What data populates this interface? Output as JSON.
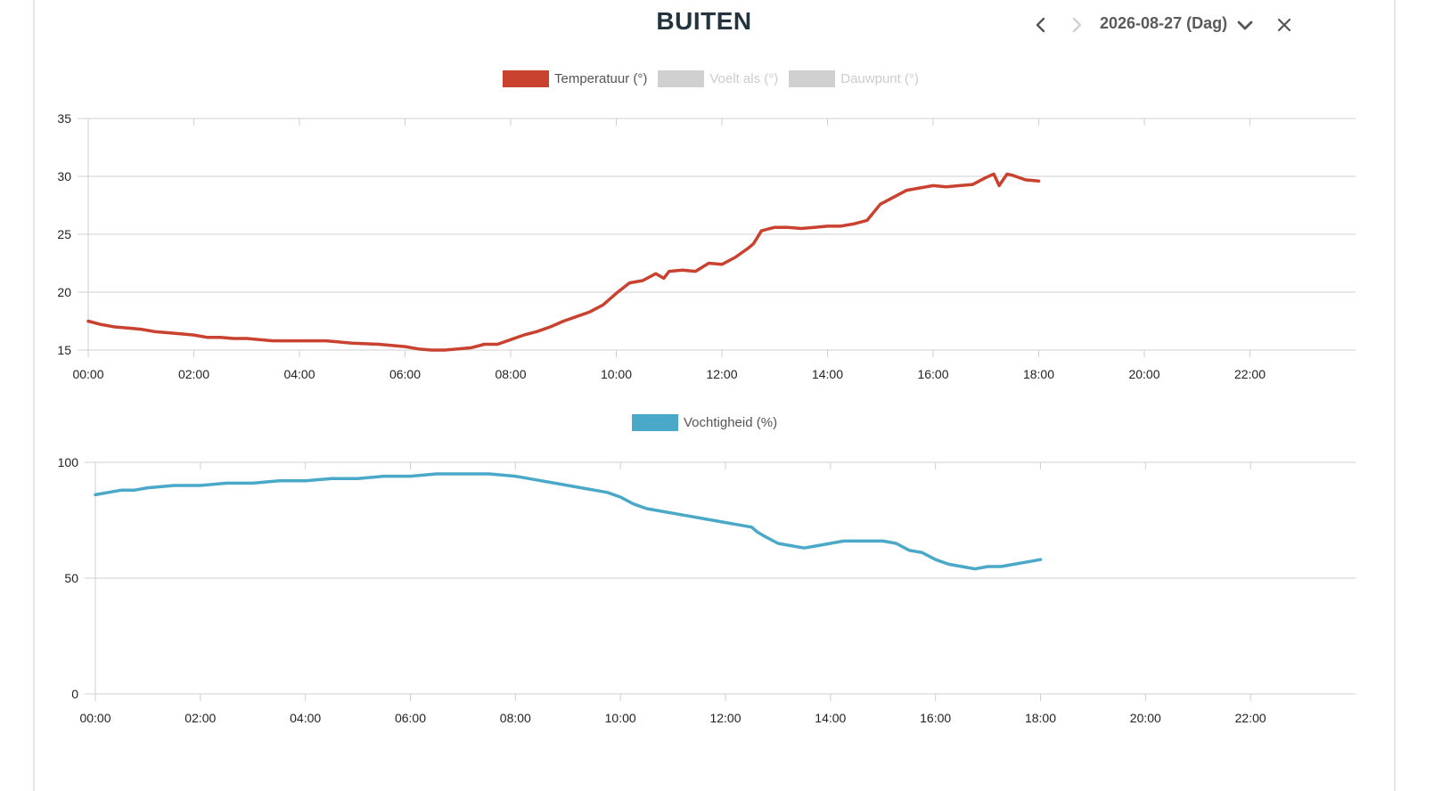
{
  "header": {
    "title": "BUITEN",
    "date": "2026-08-27 (Dag)",
    "icons": {
      "prev": "chevron-left-icon",
      "next": "chevron-right-icon",
      "dropdown": "chevron-down-icon",
      "close": "close-icon"
    }
  },
  "legend_top": [
    {
      "label": "Temperatuur (°)",
      "color": "#c9412f",
      "active": true
    },
    {
      "label": "Voelt als (°)",
      "color": "#d0d0d0",
      "active": false
    },
    {
      "label": "Dauwpunt (°)",
      "color": "#d0d0d0",
      "active": false
    }
  ],
  "legend_bottom": [
    {
      "label": "Vochtigheid (%)",
      "color": "#4aa8c8",
      "active": true
    }
  ],
  "chart_data": [
    {
      "type": "line",
      "ylim": [
        15,
        35
      ],
      "yticks": [
        "15",
        "20",
        "25",
        "30",
        "35"
      ],
      "xlim": [
        0,
        24
      ],
      "xticks": [
        "00:00",
        "02:00",
        "04:00",
        "06:00",
        "08:00",
        "10:00",
        "12:00",
        "14:00",
        "16:00",
        "18:00",
        "20:00",
        "22:00"
      ],
      "grid": true,
      "legend_position": "top-center",
      "series": [
        {
          "name": "Temperatuur (°)",
          "color": "#c9412f",
          "x": [
            0,
            0.25,
            0.5,
            0.75,
            1,
            1.25,
            1.5,
            1.75,
            2,
            2.25,
            2.5,
            2.75,
            3,
            3.5,
            4,
            4.5,
            5,
            5.5,
            6,
            6.25,
            6.5,
            6.75,
            7,
            7.25,
            7.5,
            7.75,
            8,
            8.25,
            8.5,
            8.75,
            9,
            9.25,
            9.5,
            9.75,
            10,
            10.25,
            10.5,
            10.75,
            10.9,
            11,
            11.25,
            11.5,
            11.75,
            12,
            12.25,
            12.5,
            12.6,
            12.75,
            13,
            13.25,
            13.5,
            13.75,
            14,
            14.25,
            14.5,
            14.75,
            15,
            15.25,
            15.5,
            15.75,
            16,
            16.25,
            16.5,
            16.75,
            17,
            17.15,
            17.25,
            17.4,
            17.5,
            17.75,
            18
          ],
          "y": [
            17.5,
            17.2,
            17.0,
            16.9,
            16.8,
            16.6,
            16.5,
            16.4,
            16.3,
            16.1,
            16.1,
            16.0,
            16.0,
            15.8,
            15.8,
            15.8,
            15.6,
            15.5,
            15.3,
            15.1,
            15.0,
            15.0,
            15.1,
            15.2,
            15.5,
            15.5,
            15.9,
            16.3,
            16.6,
            17.0,
            17.5,
            17.9,
            18.3,
            18.9,
            19.9,
            20.8,
            21.0,
            21.6,
            21.2,
            21.8,
            21.9,
            21.8,
            22.5,
            22.4,
            23.0,
            23.8,
            24.2,
            25.3,
            25.6,
            25.6,
            25.5,
            25.6,
            25.7,
            25.7,
            25.9,
            26.2,
            27.6,
            28.2,
            28.8,
            29.0,
            29.2,
            29.1,
            29.2,
            29.3,
            29.9,
            30.2,
            29.2,
            30.2,
            30.1,
            29.7,
            29.6
          ]
        }
      ]
    },
    {
      "type": "line",
      "ylim": [
        0,
        100
      ],
      "yticks": [
        "0",
        "50",
        "100"
      ],
      "xlim": [
        0,
        24
      ],
      "xticks": [
        "00:00",
        "02:00",
        "04:00",
        "06:00",
        "08:00",
        "10:00",
        "12:00",
        "14:00",
        "16:00",
        "18:00",
        "20:00",
        "22:00"
      ],
      "grid": true,
      "legend_position": "top-center",
      "series": [
        {
          "name": "Vochtigheid (%)",
          "color": "#4aa8c8",
          "x": [
            0,
            0.25,
            0.5,
            0.75,
            1,
            1.5,
            2,
            2.5,
            3,
            3.5,
            4,
            4.5,
            5,
            5.5,
            6,
            6.5,
            7,
            7.5,
            8,
            8.25,
            8.5,
            8.75,
            9,
            9.25,
            9.5,
            9.75,
            10,
            10.25,
            10.5,
            10.75,
            11,
            11.25,
            11.5,
            11.75,
            12,
            12.25,
            12.5,
            12.6,
            12.75,
            13,
            13.25,
            13.5,
            13.75,
            14,
            14.25,
            14.5,
            14.75,
            15,
            15.25,
            15.5,
            15.75,
            16,
            16.25,
            16.5,
            16.75,
            17,
            17.25,
            17.5,
            17.75,
            18
          ],
          "y": [
            86,
            87,
            88,
            88,
            89,
            90,
            90,
            91,
            91,
            92,
            92,
            93,
            93,
            94,
            94,
            95,
            95,
            95,
            94,
            93,
            92,
            91,
            90,
            89,
            88,
            87,
            85,
            82,
            80,
            79,
            78,
            77,
            76,
            75,
            74,
            73,
            72,
            70,
            68,
            65,
            64,
            63,
            64,
            65,
            66,
            66,
            66,
            66,
            65,
            62,
            61,
            58,
            56,
            55,
            54,
            55,
            55,
            56,
            57,
            58
          ]
        }
      ]
    }
  ]
}
